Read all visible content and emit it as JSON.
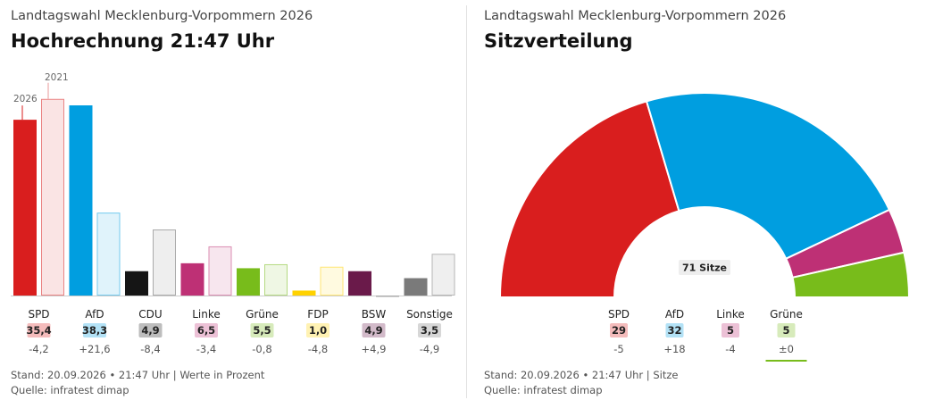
{
  "colors": {
    "SPD": "#d91e1e",
    "AfD": "#009ee0",
    "CDU": "#151515",
    "Linke": "#be3075",
    "Grüne": "#78bc1b",
    "FDP": "#ffd200",
    "BSW": "#6a1a4a",
    "Sonstige": "#7a7a7a"
  },
  "left": {
    "subtitle": "Landtagswahl Mecklenburg-Vorpommern 2026",
    "title": "Hochrechnung 21:47 Uhr",
    "footer_line1": "Stand: 20.09.2026 • 21:47 Uhr | Werte in Prozent",
    "footer_line2": "Quelle: infratest dimap"
  },
  "right": {
    "subtitle": "Landtagswahl Mecklenburg-Vorpommern 2026",
    "title": "Sitzverteilung",
    "footer_line1": "Stand: 20.09.2026 • 21:47 Uhr | Sitze",
    "footer_line2": "Quelle: infratest dimap"
  },
  "chart_data": [
    {
      "type": "bar",
      "categories": [
        "SPD",
        "AfD",
        "CDU",
        "Linke",
        "Grüne",
        "FDP",
        "BSW",
        "Sonstige"
      ],
      "series": [
        {
          "name": "2026",
          "values": [
            35.4,
            38.3,
            4.9,
            6.5,
            5.5,
            1.0,
            4.9,
            3.5
          ]
        },
        {
          "name": "2021",
          "values": [
            39.6,
            16.7,
            13.3,
            9.9,
            6.3,
            5.8,
            0,
            8.4
          ]
        }
      ],
      "value_labels": [
        "35,4",
        "38,3",
        "4,9",
        "6,5",
        "5,5",
        "1,0",
        "4,9",
        "3,5"
      ],
      "diff_labels": [
        "-4,2",
        "+21,6",
        "-8,4",
        "-3,4",
        "-0,8",
        "-4,8",
        "+4,9",
        "-4,9"
      ],
      "series_tags": [
        "2026",
        "2021"
      ]
    },
    {
      "type": "pie",
      "categories": [
        "SPD",
        "AfD",
        "Linke",
        "Grüne"
      ],
      "values": [
        29,
        32,
        5,
        5
      ],
      "value_labels": [
        "29",
        "32",
        "5",
        "5"
      ],
      "diff_labels": [
        "-5",
        "+18",
        "-4",
        "±0"
      ],
      "center_label": "71 Sitze"
    }
  ]
}
